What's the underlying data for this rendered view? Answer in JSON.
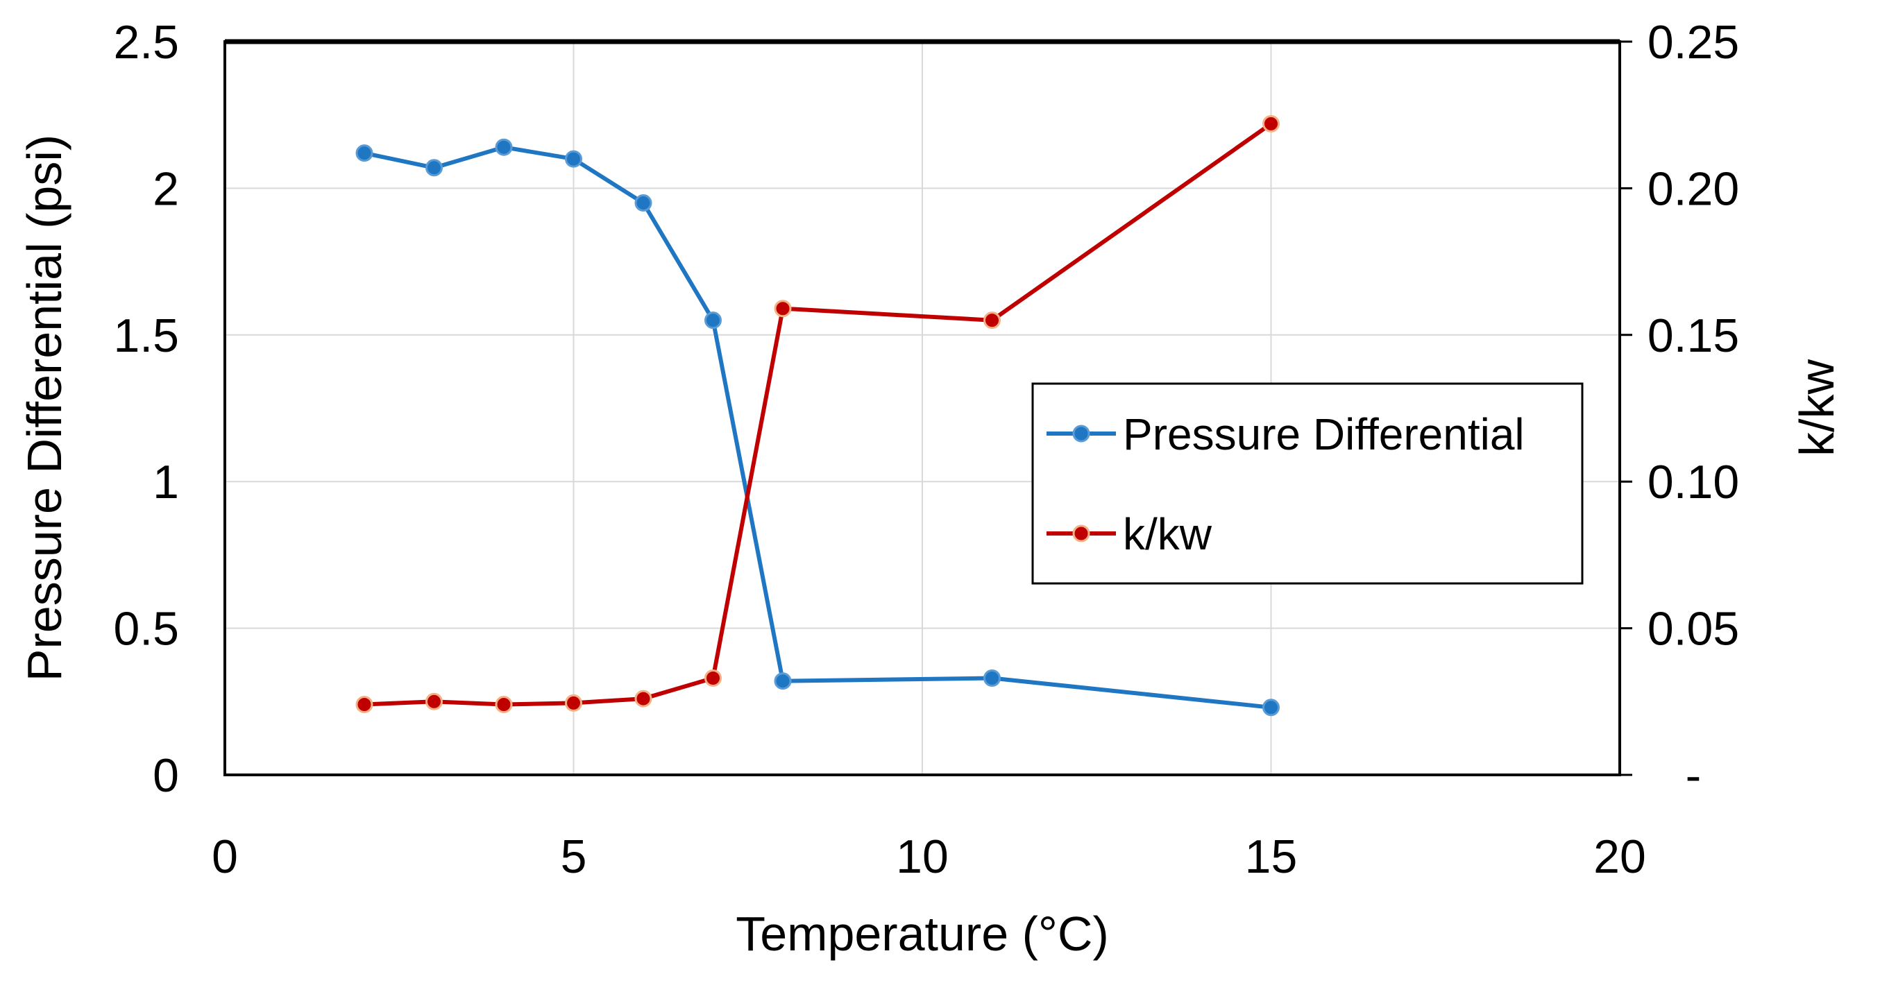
{
  "chart_data": {
    "type": "line",
    "title": "",
    "xlabel": "Temperature (°C)",
    "ylabel": "Pressure Differential (psi)",
    "y2label": "k/kw",
    "xlim": [
      0,
      20
    ],
    "ylim": [
      0,
      2.5
    ],
    "y2lim": [
      0,
      0.25
    ],
    "grid": true,
    "legend_position": "center-right",
    "x_ticks": [
      "0",
      "5",
      "10",
      "15",
      "20"
    ],
    "y_ticks": [
      "0",
      "0.5",
      "1",
      "1.5",
      "2",
      "2.5"
    ],
    "y2_ticks": [
      "-",
      "0.05",
      "0.10",
      "0.15",
      "0.20",
      "0.25"
    ],
    "series": [
      {
        "name": "Pressure Differential",
        "axis": "left",
        "color": "#1F77C4",
        "x": [
          2,
          3,
          4,
          5,
          6,
          7,
          8,
          11,
          15
        ],
        "values": [
          2.12,
          2.07,
          2.14,
          2.1,
          1.95,
          1.55,
          0.32,
          0.33,
          0.23
        ]
      },
      {
        "name": "k/kw",
        "axis": "right",
        "color": "#C00000",
        "x": [
          2,
          3,
          4,
          5,
          6,
          7,
          8,
          11,
          15
        ],
        "values": [
          0.024,
          0.025,
          0.024,
          0.0245,
          0.026,
          0.033,
          0.159,
          0.155,
          0.222
        ]
      }
    ]
  }
}
